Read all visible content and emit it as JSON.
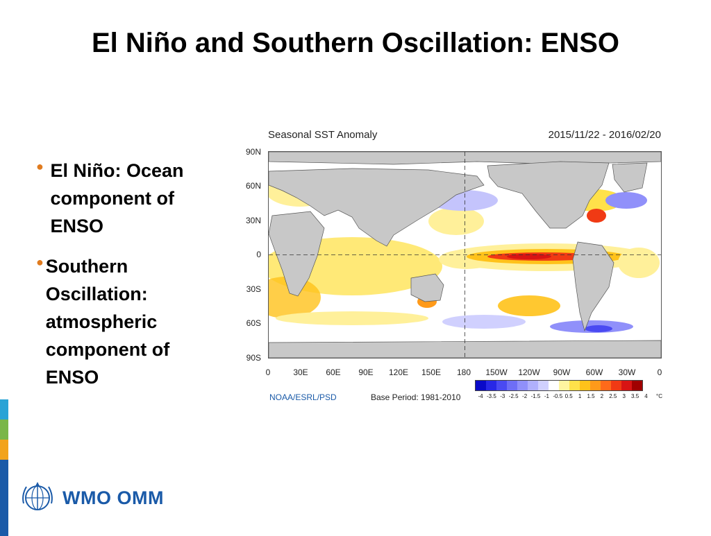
{
  "slide": {
    "title": "El Niño and Southern Oscillation: ENSO",
    "bullets": [
      {
        "text": "El Niño: Ocean component of ENSO"
      },
      {
        "text": "Southern Oscillation: atmospheric component of ENSO"
      }
    ],
    "bullet_color": "#e07b1f"
  },
  "figure": {
    "title": "Seasonal SST Anomaly",
    "date_range": "2015/11/22 - 2016/02/20",
    "lat_labels": [
      "90N",
      "60N",
      "30N",
      "0",
      "30S",
      "60S",
      "90S"
    ],
    "lon_labels": [
      "0",
      "30E",
      "60E",
      "90E",
      "120E",
      "150E",
      "180",
      "150W",
      "120W",
      "90W",
      "60W",
      "30W",
      "0"
    ],
    "source": "NOAA/ESRL/PSD",
    "base_period": "Base Period: 1981-2010",
    "legend": {
      "ticks": [
        "-4",
        "-3.5",
        "-3",
        "-2.5",
        "-2",
        "-1.5",
        "-1",
        "-0.5",
        "0.5",
        "1",
        "1.5",
        "2",
        "2.5",
        "3",
        "3.5",
        "4"
      ],
      "unit": "°C",
      "colors": [
        "#0a0ac8",
        "#2828e6",
        "#4a4af2",
        "#6e6ef6",
        "#9090fa",
        "#b0b0fc",
        "#d0d0fe",
        "#ffffff",
        "#fff5a0",
        "#ffe14a",
        "#ffc21a",
        "#ff9a1a",
        "#ff6a1a",
        "#f03a14",
        "#d81414",
        "#a00000"
      ]
    }
  },
  "branding": {
    "logo_text": "WMO OMM",
    "side_bar_colors": [
      "#29a3d6",
      "#7ab648",
      "#f2a31b",
      "#1a5aa8"
    ]
  }
}
